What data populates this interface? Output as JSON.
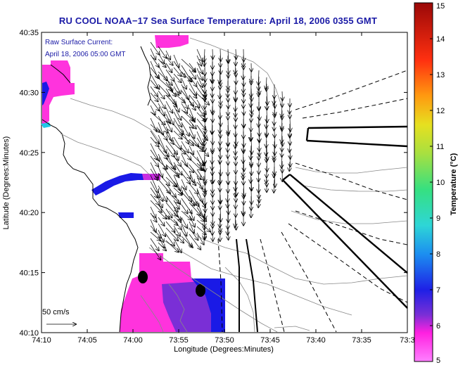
{
  "title": "RU COOL  NOAA−17  Sea Surface Temperature:  April 18, 2006 0355 GMT",
  "current_label": {
    "line1": "Raw Surface Current:",
    "line2": "April 18, 2006 05:00 GMT"
  },
  "scale_label": "50 cm/s",
  "axes": {
    "xlabel": "Longitude (Degrees:Minutes)",
    "ylabel": "Latitude (Degrees:Minutes)",
    "xticks": [
      "74:10",
      "74:05",
      "74:00",
      "73:55",
      "73:50",
      "73:45",
      "73:40",
      "73:35",
      "73:3"
    ],
    "yticks": [
      "40:35",
      "40:30",
      "40:25",
      "40:20",
      "40:15",
      "40:10"
    ]
  },
  "colorbar": {
    "label": "Temperature (°C)",
    "ticks": [
      "15",
      "14",
      "13",
      "12",
      "11",
      "10",
      "9",
      "8",
      "7",
      "6",
      "5"
    ],
    "min": 5,
    "max": 15
  },
  "colors": {
    "title": "#1a1aa6",
    "magenta": "#ff33dd",
    "blue": "#1a1ae6"
  }
}
